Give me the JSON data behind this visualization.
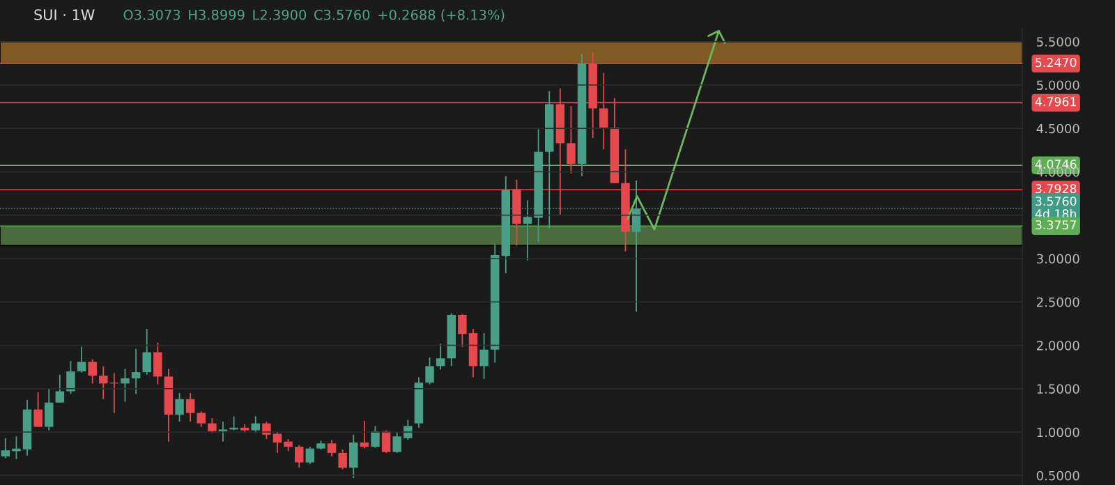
{
  "chart_data": {
    "type": "candlestick",
    "title": "SUI · 1W",
    "annotations": [
      "O3.3073",
      "H3.8999",
      "L2.3900",
      "C3.5760",
      "+0.2688 (+8.13%)"
    ],
    "categories": [
      null,
      null,
      null,
      null,
      null,
      null,
      null,
      null,
      null,
      null,
      null,
      null,
      null,
      null,
      null,
      null,
      null,
      null,
      null,
      null,
      null,
      null,
      null,
      null,
      null,
      null,
      null,
      null,
      null,
      null,
      null,
      null,
      null,
      null,
      null,
      null,
      null,
      null,
      null,
      null,
      null,
      null,
      null,
      null,
      null,
      null,
      null,
      null,
      null,
      null,
      null,
      null,
      null,
      null,
      null,
      null,
      null,
      null,
      null,
      null,
      null,
      null,
      null,
      null,
      null,
      null,
      null,
      null,
      null,
      null,
      null,
      null,
      null,
      null,
      null,
      null,
      null,
      null,
      null,
      null,
      null,
      null,
      null,
      null,
      null,
      null,
      null,
      null,
      null,
      null,
      null,
      null,
      null,
      null
    ],
    "ohlc": [
      [
        0.72,
        0.93,
        0.7,
        0.79
      ],
      [
        0.78,
        0.95,
        0.69,
        0.81
      ],
      [
        0.8,
        1.37,
        0.73,
        1.26
      ],
      [
        1.26,
        1.46,
        1.06,
        1.06
      ],
      [
        1.06,
        1.5,
        1.02,
        1.34
      ],
      [
        1.34,
        1.66,
        1.34,
        1.47
      ],
      [
        1.47,
        1.82,
        1.44,
        1.7
      ],
      [
        1.7,
        1.98,
        1.69,
        1.81
      ],
      [
        1.81,
        1.84,
        1.56,
        1.65
      ],
      [
        1.65,
        1.76,
        1.38,
        1.56
      ],
      [
        1.57,
        1.68,
        1.22,
        1.56
      ],
      [
        1.56,
        1.73,
        1.35,
        1.62
      ],
      [
        1.62,
        1.96,
        1.44,
        1.69
      ],
      [
        1.69,
        2.19,
        1.66,
        1.92
      ],
      [
        1.92,
        2.03,
        1.55,
        1.64
      ],
      [
        1.64,
        1.73,
        0.89,
        1.2
      ],
      [
        1.2,
        1.45,
        1.12,
        1.38
      ],
      [
        1.38,
        1.45,
        1.12,
        1.22
      ],
      [
        1.22,
        1.24,
        1.06,
        1.1
      ],
      [
        1.1,
        1.16,
        0.99,
        1.01
      ],
      [
        1.01,
        1.12,
        0.89,
        1.03
      ],
      [
        1.03,
        1.18,
        1.02,
        1.05
      ],
      [
        1.05,
        1.09,
        0.99,
        1.02
      ],
      [
        1.02,
        1.18,
        0.99,
        1.1
      ],
      [
        1.1,
        1.12,
        0.92,
        0.97
      ],
      [
        0.98,
        1.0,
        0.76,
        0.88
      ],
      [
        0.89,
        0.92,
        0.78,
        0.83
      ],
      [
        0.83,
        0.85,
        0.59,
        0.65
      ],
      [
        0.65,
        0.83,
        0.63,
        0.81
      ],
      [
        0.81,
        0.9,
        0.8,
        0.87
      ],
      [
        0.87,
        0.91,
        0.72,
        0.76
      ],
      [
        0.76,
        0.8,
        0.57,
        0.59
      ],
      [
        0.59,
        0.97,
        0.47,
        0.88
      ],
      [
        0.88,
        1.13,
        0.81,
        0.83
      ],
      [
        0.83,
        1.07,
        0.82,
        1.01
      ],
      [
        1.01,
        1.02,
        0.76,
        0.77
      ],
      [
        0.77,
        1.0,
        0.76,
        0.95
      ],
      [
        0.93,
        1.14,
        0.91,
        1.07
      ],
      [
        1.1,
        1.63,
        1.05,
        1.57
      ],
      [
        1.57,
        1.86,
        1.55,
        1.76
      ],
      [
        1.76,
        2.02,
        1.72,
        1.85
      ],
      [
        1.85,
        2.37,
        1.76,
        2.35
      ],
      [
        2.35,
        2.36,
        1.98,
        2.13
      ],
      [
        2.14,
        2.19,
        1.63,
        1.76
      ],
      [
        1.76,
        2.14,
        1.61,
        1.95
      ],
      [
        1.95,
        3.16,
        1.8,
        3.04
      ],
      [
        3.03,
        3.95,
        2.83,
        3.79
      ],
      [
        3.8,
        3.91,
        3.15,
        3.4
      ],
      [
        3.4,
        3.67,
        2.98,
        3.48
      ],
      [
        3.47,
        4.49,
        3.19,
        4.23
      ],
      [
        4.23,
        4.93,
        3.35,
        4.78
      ],
      [
        4.78,
        4.96,
        3.5,
        4.33
      ],
      [
        4.33,
        4.76,
        3.98,
        4.09
      ],
      [
        4.09,
        5.36,
        3.95,
        5.25
      ],
      [
        5.25,
        5.38,
        4.39,
        4.73
      ],
      [
        4.73,
        5.14,
        4.26,
        4.51
      ],
      [
        4.51,
        4.85,
        3.87,
        3.87
      ],
      [
        3.87,
        4.26,
        3.08,
        3.31
      ],
      [
        3.3073,
        3.8999,
        2.39,
        3.576
      ],
      null,
      null,
      null,
      null,
      null,
      null,
      null,
      null,
      null,
      null,
      null,
      null,
      null,
      null,
      null,
      null,
      null,
      null,
      null,
      null,
      null,
      null,
      null,
      null,
      null,
      null,
      null,
      null,
      null,
      null,
      null,
      null,
      null,
      null,
      null
    ],
    "colors": [
      "#4a9e88",
      "#4a9e88",
      "#4a9e88",
      "#e5484d",
      "#4a9e88",
      "#4a9e88",
      "#4a9e88",
      "#4a9e88",
      "#e5484d",
      "#e5484d",
      "#e5484d",
      "#4a9e88",
      "#4a9e88",
      "#4a9e88",
      "#e5484d",
      "#e5484d",
      "#4a9e88",
      "#e5484d",
      "#e5484d",
      "#e5484d",
      "#4a9e88",
      "#4a9e88",
      "#e5484d",
      "#4a9e88",
      "#e5484d",
      "#e5484d",
      "#e5484d",
      "#e5484d",
      "#4a9e88",
      "#4a9e88",
      "#e5484d",
      "#e5484d",
      "#4a9e88",
      "#e5484d",
      "#4a9e88",
      "#e5484d",
      "#4a9e88",
      "#4a9e88",
      "#4a9e88",
      "#4a9e88",
      "#4a9e88",
      "#4a9e88",
      "#e5484d",
      "#e5484d",
      "#4a9e88",
      "#4a9e88",
      "#4a9e88",
      "#e5484d",
      "#4a9e88",
      "#4a9e88",
      "#4a9e88",
      "#e5484d",
      "#e5484d",
      "#4a9e88",
      "#e5484d",
      "#e5484d",
      "#e5484d",
      "#e5484d",
      "#4a9e88",
      null,
      null,
      null,
      null,
      null,
      null,
      null,
      null,
      null,
      null,
      null,
      null,
      null,
      null,
      null,
      null,
      null,
      null,
      null,
      null,
      null,
      null,
      null,
      null,
      null,
      null,
      null,
      null,
      null,
      null,
      null,
      null,
      null,
      null,
      null
    ],
    "ylim": [
      0.39,
      5.65
    ],
    "yticks": [
      {
        "value": 0.5,
        "label": "0.5000"
      },
      {
        "value": 1.0,
        "label": "1.0000"
      },
      {
        "value": 1.5,
        "label": "1.5000"
      },
      {
        "value": 2.0,
        "label": "2.0000"
      },
      {
        "value": 2.5,
        "label": "2.5000"
      },
      {
        "value": 3.0,
        "label": "3.0000"
      },
      {
        "value": 3.5,
        "label": null
      },
      {
        "value": 4.0,
        "label": "4.0000"
      },
      {
        "value": 4.5,
        "label": "4.5000"
      },
      {
        "value": 5.0,
        "label": "5.0000"
      },
      {
        "value": 5.5,
        "label": "5.5000"
      }
    ],
    "tick_labels": "y",
    "ref_lines": [
      {
        "axis": "y",
        "value": 5.247,
        "label": "5.2470",
        "color": "#e5484d"
      },
      {
        "axis": "y",
        "value": 4.7961,
        "label": "4.7961",
        "color": "#e5484d"
      },
      {
        "axis": "y",
        "value": 4.0746,
        "label": "4.0746",
        "color": "#5fae55"
      },
      {
        "axis": "y",
        "value": 3.7928,
        "label": "3.7928",
        "color": "#e5484d"
      },
      {
        "axis": "y",
        "value": 3.576,
        "label": "3.5760\n4d 18h",
        "color": "#3f9b84",
        "line_style": "dotted"
      },
      {
        "axis": "y",
        "value": 3.3757,
        "label": "3.3757",
        "color": "#5fae55"
      }
    ],
    "bands": [
      {
        "axis": "y",
        "from": 5.247,
        "to": 5.5,
        "color": "#7f5a22"
      },
      {
        "axis": "y",
        "from": 3.15,
        "to": 3.3757,
        "color": "#4a6b3c"
      }
    ],
    "grid": "y",
    "legend": false
  }
}
